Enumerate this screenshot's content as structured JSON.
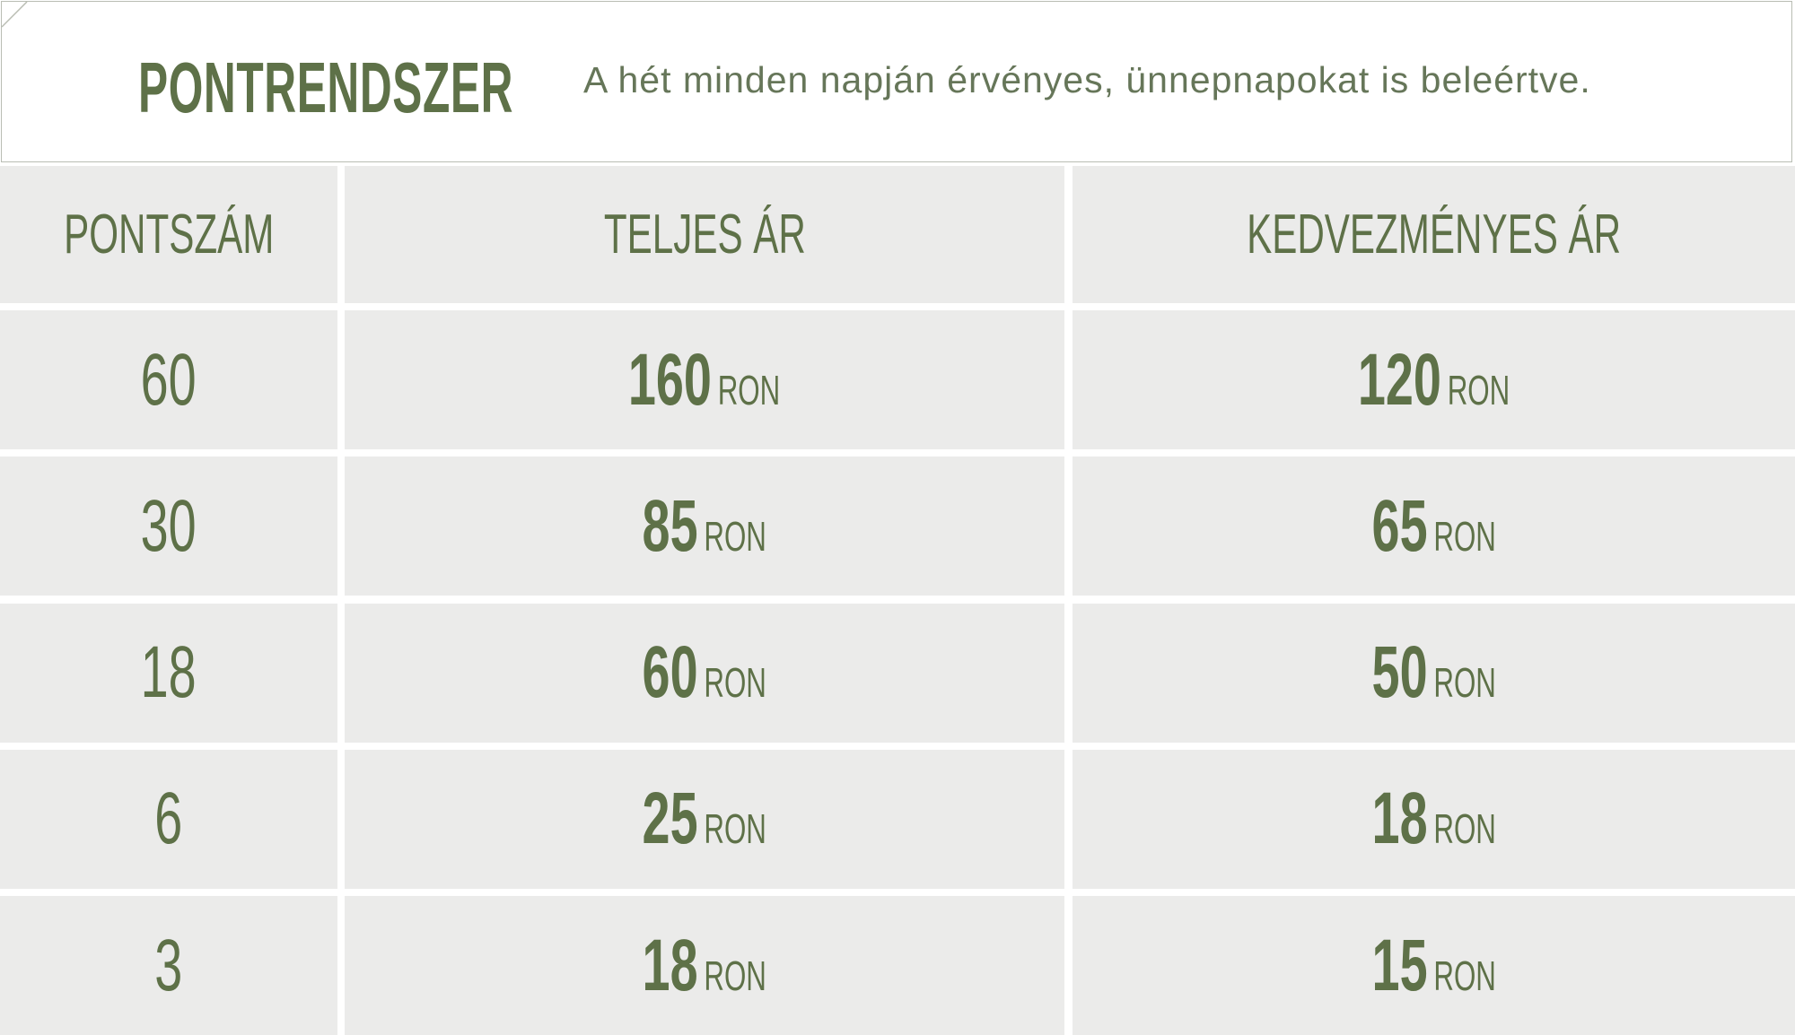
{
  "header": {
    "title": "PONTRENDSZER",
    "subtitle": "A hét minden napján érvényes, ünnepnapokat is beleértve."
  },
  "table": {
    "columns": [
      "PONTSZÁM",
      "TELJES ÁR",
      "KEDVEZMÉNYES ÁR"
    ],
    "rows": [
      [
        "60",
        {
          "amount": "160",
          "unit": "RON"
        },
        {
          "amount": "120",
          "unit": "RON"
        }
      ],
      [
        "30",
        {
          "amount": "85",
          "unit": "RON"
        },
        {
          "amount": "65",
          "unit": "RON"
        }
      ],
      [
        "18",
        {
          "amount": "60",
          "unit": "RON"
        },
        {
          "amount": "50",
          "unit": "RON"
        }
      ],
      [
        "6",
        {
          "amount": "25",
          "unit": "RON"
        },
        {
          "amount": "18",
          "unit": "RON"
        }
      ],
      [
        "3",
        {
          "amount": "18",
          "unit": "RON"
        },
        {
          "amount": "15",
          "unit": "RON"
        }
      ]
    ]
  }
}
